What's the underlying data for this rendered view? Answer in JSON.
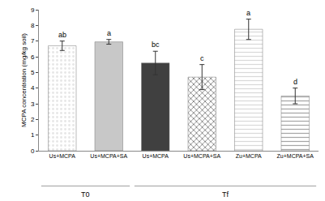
{
  "chart_data": {
    "type": "bar",
    "y_label": "MCPA concentration (mg/kg soil)",
    "categories": [
      "Us+MCPA",
      "Us+MCPA+SA",
      "Us+MCPA",
      "Us+MCPA+SA",
      "Zu+MCPA",
      "Zu+MCPA+SA"
    ],
    "group_labels": [
      "T0",
      "T0",
      "Tf",
      "Tf",
      "Tf",
      "Tf"
    ],
    "values": [
      6.7,
      6.95,
      5.6,
      4.7,
      7.75,
      3.5
    ],
    "errors": [
      0.3,
      0.15,
      0.75,
      0.8,
      0.65,
      0.5
    ],
    "letters": [
      "ab",
      "a",
      "bc",
      "c",
      "a",
      "d"
    ],
    "colors": [
      "#e6e6e6",
      "#c8c8c8",
      "#404040",
      "#595959",
      "#d9d9d9",
      "#a6a6a6"
    ],
    "ylim": [
      0,
      9
    ],
    "yticks": [
      0,
      1,
      2,
      3,
      4,
      5,
      6,
      7,
      8,
      9
    ],
    "grid": false
  }
}
